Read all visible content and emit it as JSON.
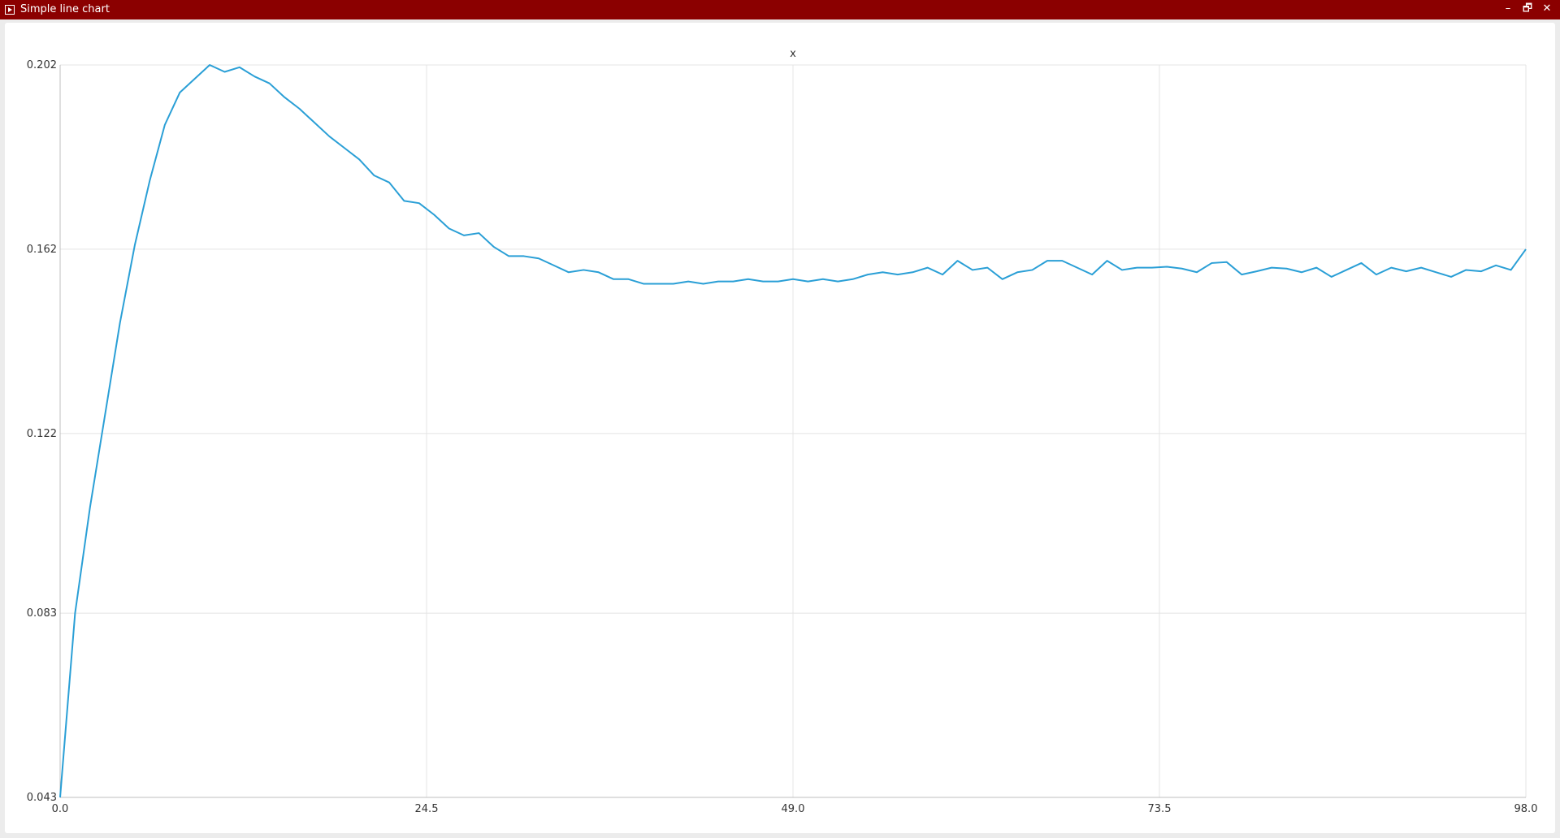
{
  "window": {
    "title": "Simple line chart",
    "minimize_glyph": "–",
    "maximize_glyph": "🗗",
    "close_glyph": "✕",
    "titlebar_color": "#8b0000",
    "icon": "app-window-icon"
  },
  "chart_data": {
    "type": "line",
    "title": "x",
    "xlabel": "",
    "ylabel": "",
    "xlim": [
      0.0,
      98.0
    ],
    "ylim": [
      0.043,
      0.202
    ],
    "x_ticks": [
      "0.0",
      "24.5",
      "49.0",
      "73.5",
      "98.0"
    ],
    "y_ticks": [
      "0.043",
      "0.083",
      "0.122",
      "0.162",
      "0.202"
    ],
    "grid": true,
    "line_color": "#2a9fd6",
    "series": [
      {
        "values": [
          0.043,
          0.083,
          0.106,
          0.126,
          0.146,
          0.163,
          0.177,
          0.189,
          0.196,
          0.199,
          0.202,
          0.2005,
          0.2015,
          0.1995,
          0.198,
          0.195,
          0.1925,
          0.1895,
          0.1865,
          0.184,
          0.1815,
          0.178,
          0.1765,
          0.1725,
          0.172,
          0.1695,
          0.1665,
          0.165,
          0.1655,
          0.1625,
          0.1605,
          0.1605,
          0.16,
          0.1585,
          0.157,
          0.1575,
          0.157,
          0.1555,
          0.1555,
          0.1545,
          0.1545,
          0.1545,
          0.155,
          0.1545,
          0.155,
          0.155,
          0.1555,
          0.155,
          0.155,
          0.1555,
          0.155,
          0.1555,
          0.155,
          0.1555,
          0.1565,
          0.157,
          0.1565,
          0.157,
          0.158,
          0.1565,
          0.1595,
          0.1575,
          0.158,
          0.1555,
          0.157,
          0.1575,
          0.1595,
          0.1595,
          0.158,
          0.1565,
          0.1595,
          0.1575,
          0.158,
          0.158,
          0.1582,
          0.1578,
          0.157,
          0.159,
          0.1592,
          0.1565,
          0.1572,
          0.158,
          0.1578,
          0.157,
          0.158,
          0.156,
          0.1575,
          0.159,
          0.1565,
          0.158,
          0.1572,
          0.158,
          0.157,
          0.156,
          0.1575,
          0.1572,
          0.1585,
          0.1575,
          0.162
        ]
      }
    ]
  }
}
